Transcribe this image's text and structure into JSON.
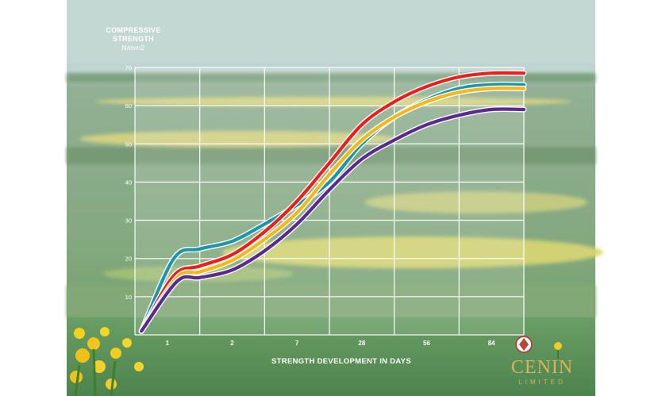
{
  "chart_data": {
    "type": "line",
    "ylabel_lines": [
      "COMPRESSIVE",
      "STRENGTH",
      "N/mm2"
    ],
    "xlabel": "STRENGTH DEVELOPMENT IN DAYS",
    "categories": [
      "1",
      "2",
      "7",
      "28",
      "56",
      "84"
    ],
    "y_ticks": [
      10,
      20,
      30,
      40,
      50,
      60,
      70
    ],
    "ylim": [
      0,
      70
    ],
    "grid": true,
    "legend": "none",
    "series": [
      {
        "color": "#1f95a8",
        "points": [
          [
            -0.4,
            1
          ],
          [
            0.1,
            20
          ],
          [
            0.5,
            22.5
          ],
          [
            1.0,
            24.5
          ],
          [
            1.5,
            29
          ],
          [
            2.0,
            34
          ],
          [
            2.5,
            40
          ],
          [
            3.0,
            50
          ],
          [
            3.5,
            57
          ],
          [
            4.0,
            61.5
          ],
          [
            4.5,
            64.5
          ],
          [
            5.0,
            65.5
          ],
          [
            5.5,
            65.5
          ]
        ]
      },
      {
        "color": "#e8211f",
        "points": [
          [
            -0.4,
            1
          ],
          [
            0.1,
            15.5
          ],
          [
            0.5,
            18
          ],
          [
            1.0,
            21
          ],
          [
            1.5,
            27
          ],
          [
            2.0,
            35
          ],
          [
            2.5,
            45
          ],
          [
            3.0,
            55
          ],
          [
            3.5,
            61
          ],
          [
            4.0,
            65
          ],
          [
            4.5,
            67.5
          ],
          [
            5.0,
            68.5
          ],
          [
            5.5,
            68.5
          ]
        ]
      },
      {
        "color": "#f2b81c",
        "points": [
          [
            -0.4,
            1
          ],
          [
            0.15,
            15
          ],
          [
            0.5,
            16.5
          ],
          [
            1.0,
            19.5
          ],
          [
            1.5,
            25
          ],
          [
            2.0,
            32
          ],
          [
            2.5,
            42
          ],
          [
            3.0,
            51
          ],
          [
            3.5,
            57
          ],
          [
            4.0,
            61
          ],
          [
            4.5,
            63.5
          ],
          [
            5.0,
            64.5
          ],
          [
            5.5,
            64.5
          ]
        ]
      },
      {
        "color": "#5b2a8f",
        "points": [
          [
            -0.4,
            1
          ],
          [
            0.15,
            14
          ],
          [
            0.5,
            15
          ],
          [
            1.0,
            17
          ],
          [
            1.5,
            22
          ],
          [
            2.0,
            29
          ],
          [
            2.5,
            38
          ],
          [
            3.0,
            46
          ],
          [
            3.5,
            51
          ],
          [
            4.0,
            55
          ],
          [
            4.5,
            57.5
          ],
          [
            5.0,
            59
          ],
          [
            5.5,
            59
          ]
        ]
      }
    ]
  },
  "logo": {
    "name": "CENIN",
    "sub": "LIMITED"
  }
}
